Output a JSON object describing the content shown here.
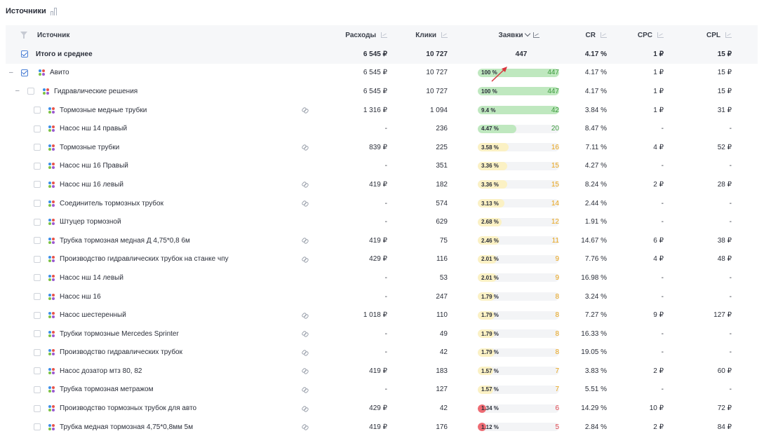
{
  "page": {
    "title": "Источники"
  },
  "columns": {
    "source": "Источник",
    "spend": "Расходы",
    "clicks": "Клики",
    "leads": "Заявки",
    "cr": "CR",
    "cpc": "CPC",
    "cpl": "CPL"
  },
  "total": {
    "label": "Итого и среднее",
    "spend": "6 545 ₽",
    "clicks": "10 727",
    "leads": "447",
    "cr": "4.17 %",
    "cpc": "1 ₽",
    "cpl": "15 ₽"
  },
  "colors": {
    "green": "#bfe8bf",
    "green_text": "#3c9a3c",
    "yellow": "#fbf1c4",
    "yellow_text": "#e8a317",
    "red": "#ee6b73",
    "red_text": "#e0474f"
  },
  "rows": [
    {
      "level": 0,
      "name": "Авито",
      "spend": "6 545 ₽",
      "clicks": "10 727",
      "pct": "100 %",
      "share": 100,
      "leads": "447",
      "tone": "green",
      "cr": "4.17 %",
      "cpc": "1 ₽",
      "cpl": "15 ₽",
      "checked": true,
      "toggle": "–",
      "link": false
    },
    {
      "level": 1,
      "name": "Гидравлические решения",
      "spend": "6 545 ₽",
      "clicks": "10 727",
      "pct": "100 %",
      "share": 100,
      "leads": "447",
      "tone": "green",
      "cr": "4.17 %",
      "cpc": "1 ₽",
      "cpl": "15 ₽",
      "checked": false,
      "toggle": "–",
      "link": false
    },
    {
      "level": 2,
      "name": "Тормозные медные трубки",
      "spend": "1 316 ₽",
      "clicks": "1 094",
      "pct": "9.4 %",
      "share": 100,
      "leads": "42",
      "tone": "green",
      "cr": "3.84 %",
      "cpc": "1 ₽",
      "cpl": "31 ₽",
      "link": true
    },
    {
      "level": 2,
      "name": "Насос нш 14 правый",
      "spend": "-",
      "clicks": "236",
      "pct": "4.47 %",
      "share": 47,
      "leads": "20",
      "tone": "green",
      "cr": "8.47 %",
      "cpc": "-",
      "cpl": "-",
      "link": false
    },
    {
      "level": 2,
      "name": "Тормозные трубки",
      "spend": "839 ₽",
      "clicks": "225",
      "pct": "3.58 %",
      "share": 38,
      "leads": "16",
      "tone": "yellow",
      "cr": "7.11 %",
      "cpc": "4 ₽",
      "cpl": "52 ₽",
      "link": true
    },
    {
      "level": 2,
      "name": "Насос нш 16 Правый",
      "spend": "-",
      "clicks": "351",
      "pct": "3.36 %",
      "share": 36,
      "leads": "15",
      "tone": "yellow",
      "cr": "4.27 %",
      "cpc": "-",
      "cpl": "-",
      "link": false
    },
    {
      "level": 2,
      "name": "Насос нш 16 левый",
      "spend": "419 ₽",
      "clicks": "182",
      "pct": "3.36 %",
      "share": 36,
      "leads": "15",
      "tone": "yellow",
      "cr": "8.24 %",
      "cpc": "2 ₽",
      "cpl": "28 ₽",
      "link": true
    },
    {
      "level": 2,
      "name": "Соединитель тормозных трубок",
      "spend": "-",
      "clicks": "574",
      "pct": "3.13 %",
      "share": 33,
      "leads": "14",
      "tone": "yellow",
      "cr": "2.44 %",
      "cpc": "-",
      "cpl": "-",
      "link": true
    },
    {
      "level": 2,
      "name": "Штуцер тормозной",
      "spend": "-",
      "clicks": "629",
      "pct": "2.68 %",
      "share": 29,
      "leads": "12",
      "tone": "yellow",
      "cr": "1.91 %",
      "cpc": "-",
      "cpl": "-",
      "link": false
    },
    {
      "level": 2,
      "name": "Трубка тормозная медная Д 4,75*0,8 6м",
      "spend": "419 ₽",
      "clicks": "75",
      "pct": "2.46 %",
      "share": 27,
      "leads": "11",
      "tone": "yellow",
      "cr": "14.67 %",
      "cpc": "6 ₽",
      "cpl": "38 ₽",
      "link": true
    },
    {
      "level": 2,
      "name": "Производство гидравлических трубок на станке чпу",
      "spend": "429 ₽",
      "clicks": "116",
      "pct": "2.01 %",
      "share": 23,
      "leads": "9",
      "tone": "yellow",
      "cr": "7.76 %",
      "cpc": "4 ₽",
      "cpl": "48 ₽",
      "link": true
    },
    {
      "level": 2,
      "name": "Насос нш 14 левый",
      "spend": "-",
      "clicks": "53",
      "pct": "2.01 %",
      "share": 23,
      "leads": "9",
      "tone": "yellow",
      "cr": "16.98 %",
      "cpc": "-",
      "cpl": "-",
      "link": false
    },
    {
      "level": 2,
      "name": "Насос нш 16",
      "spend": "-",
      "clicks": "247",
      "pct": "1.79 %",
      "share": 21,
      "leads": "8",
      "tone": "yellow",
      "cr": "3.24 %",
      "cpc": "-",
      "cpl": "-",
      "link": false
    },
    {
      "level": 2,
      "name": "Насос шестеренный",
      "spend": "1 018 ₽",
      "clicks": "110",
      "pct": "1.79 %",
      "share": 21,
      "leads": "8",
      "tone": "yellow",
      "cr": "7.27 %",
      "cpc": "9 ₽",
      "cpl": "127 ₽",
      "link": true
    },
    {
      "level": 2,
      "name": "Трубки тормозные Mercedes Sprinter",
      "spend": "-",
      "clicks": "49",
      "pct": "1.79 %",
      "share": 21,
      "leads": "8",
      "tone": "yellow",
      "cr": "16.33 %",
      "cpc": "-",
      "cpl": "-",
      "link": true
    },
    {
      "level": 2,
      "name": "Производство гидравлических трубок",
      "spend": "-",
      "clicks": "42",
      "pct": "1.79 %",
      "share": 21,
      "leads": "8",
      "tone": "yellow",
      "cr": "19.05 %",
      "cpc": "-",
      "cpl": "-",
      "link": true
    },
    {
      "level": 2,
      "name": "Насос дозатор мтз 80, 82",
      "spend": "419 ₽",
      "clicks": "183",
      "pct": "1.57 %",
      "share": 19,
      "leads": "7",
      "tone": "yellow",
      "cr": "3.83 %",
      "cpc": "2 ₽",
      "cpl": "60 ₽",
      "link": true
    },
    {
      "level": 2,
      "name": "Трубка тормозная метражом",
      "spend": "-",
      "clicks": "127",
      "pct": "1.57 %",
      "share": 19,
      "leads": "7",
      "tone": "yellow",
      "cr": "5.51 %",
      "cpc": "-",
      "cpl": "-",
      "link": true
    },
    {
      "level": 2,
      "name": "Производство тормозных трубок для авто",
      "spend": "429 ₽",
      "clicks": "42",
      "pct": "1.34 %",
      "share": 14,
      "leads": "6",
      "tone": "red",
      "cr": "14.29 %",
      "cpc": "10 ₽",
      "cpl": "72 ₽",
      "link": true
    },
    {
      "level": 2,
      "name": "Трубка медная тормозная 4,75*0,8мм 5м",
      "spend": "419 ₽",
      "clicks": "176",
      "pct": "1.12 %",
      "share": 14,
      "leads": "5",
      "tone": "red",
      "cr": "2.84 %",
      "cpc": "2 ₽",
      "cpl": "84 ₽",
      "link": true
    }
  ]
}
